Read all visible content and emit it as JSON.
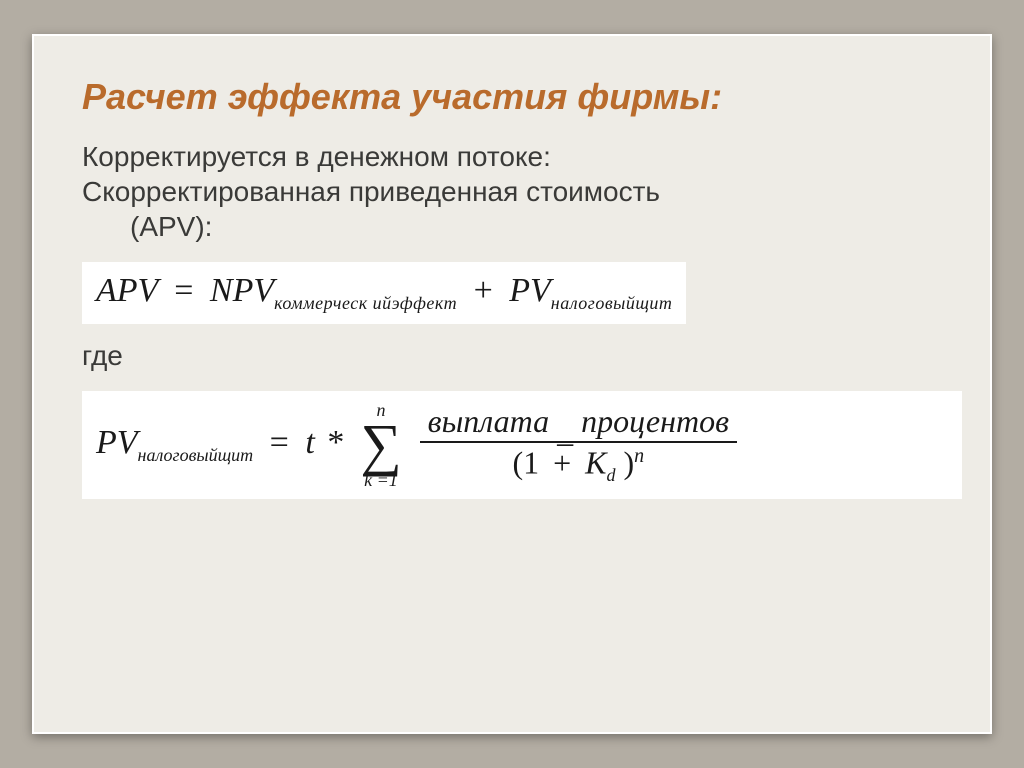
{
  "colors": {
    "page_bg": "#b3ada3",
    "slide_bg": "#eeece6",
    "slide_border": "#ffffff",
    "title_color": "#b96b2c",
    "body_color": "#3a3a38",
    "formula_box_bg": "#ffffff",
    "formula_text": "#1a1a1a",
    "fraction_bar": "#1a1a1a"
  },
  "typography": {
    "title_pt": 36,
    "title_weight": "bold",
    "title_style": "italic",
    "body_pt": 28,
    "formula_main_pt": 34,
    "formula_sub_pt": 18,
    "sigma_pt": 58,
    "formula_family": "Times New Roman"
  },
  "title": "Расчет эффекта участия фирмы:",
  "body": {
    "line1": "Корректируется в денежном потоке:",
    "line2": "Скорректированная приведенная стоимость",
    "line3": "(APV):",
    "where": "где"
  },
  "formula1": {
    "lhs": "APV",
    "term1": "NPV",
    "term1_sub": "коммерческ ийэффект",
    "plus": "+",
    "term2": "PV",
    "term2_sub": "налоговыйщит",
    "eq": "="
  },
  "formula2": {
    "lhs": "PV",
    "lhs_sub": "налоговыйщит",
    "eq": "=",
    "mult_left": "t",
    "star": "*",
    "sum_upper": "n",
    "sum_sigma": "∑",
    "sum_lower": "k =1",
    "num_left": "выплата",
    "num_uscore": "_",
    "num_right": "процентов",
    "den_open": "(1",
    "den_plus": "+",
    "den_K": "K",
    "den_d": "d",
    "den_close": ")",
    "den_sup": "n"
  }
}
